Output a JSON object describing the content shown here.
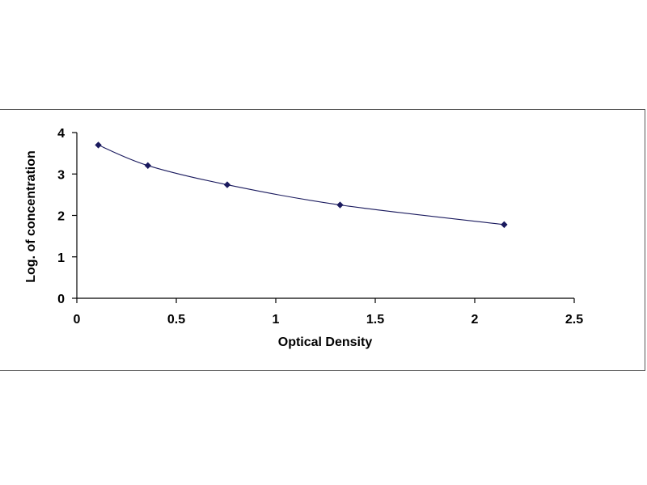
{
  "chart_data": {
    "type": "scatter",
    "title": "",
    "xlabel": "Optical Density",
    "ylabel": "Log. of concentration",
    "xlim": [
      0,
      2.5
    ],
    "ylim": [
      0,
      4
    ],
    "x_ticks": [
      "0",
      "0.5",
      "1",
      "1.5",
      "2",
      "2.5"
    ],
    "y_ticks": [
      "0",
      "1",
      "2",
      "3",
      "4"
    ],
    "grid": false,
    "legend": "none",
    "series": [
      {
        "x": [
          0.108,
          0.357,
          0.756,
          1.323,
          2.148
        ],
        "y": [
          3.699,
          3.204,
          2.74,
          2.253,
          1.778
        ],
        "trendline": "smooth"
      }
    ],
    "colors": {
      "marker": "#1a1a5e",
      "line": "#1a1a5e",
      "axis": "#000000"
    }
  }
}
